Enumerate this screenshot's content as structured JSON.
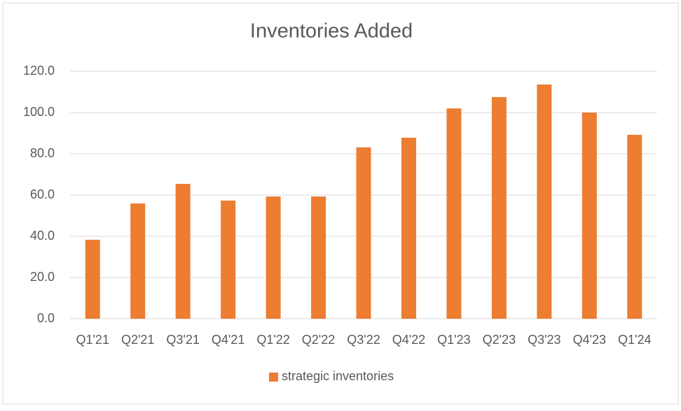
{
  "chart_data": {
    "type": "bar",
    "title": "Inventories Added",
    "categories": [
      "Q1'21",
      "Q2'21",
      "Q3'21",
      "Q4'21",
      "Q1'22",
      "Q2'22",
      "Q3'22",
      "Q4'22",
      "Q1'23",
      "Q2'23",
      "Q3'23",
      "Q4'23",
      "Q1'24"
    ],
    "series": [
      {
        "name": "strategic inventories",
        "color": "#ed7d31",
        "values": [
          38.3,
          55.9,
          65.4,
          57.3,
          59.3,
          59.3,
          83.1,
          87.8,
          102.0,
          107.5,
          113.6,
          100.0,
          89.2
        ]
      }
    ],
    "ylim": [
      0,
      120
    ],
    "yticks": [
      {
        "value": 0,
        "label": "0.0"
      },
      {
        "value": 20,
        "label": "20.0"
      },
      {
        "value": 40,
        "label": "40.0"
      },
      {
        "value": 60,
        "label": "60.0"
      },
      {
        "value": 80,
        "label": "80.0"
      },
      {
        "value": 100,
        "label": "100.0"
      },
      {
        "value": 120,
        "label": "120.0"
      }
    ],
    "grid": true,
    "legend": "bottom"
  }
}
